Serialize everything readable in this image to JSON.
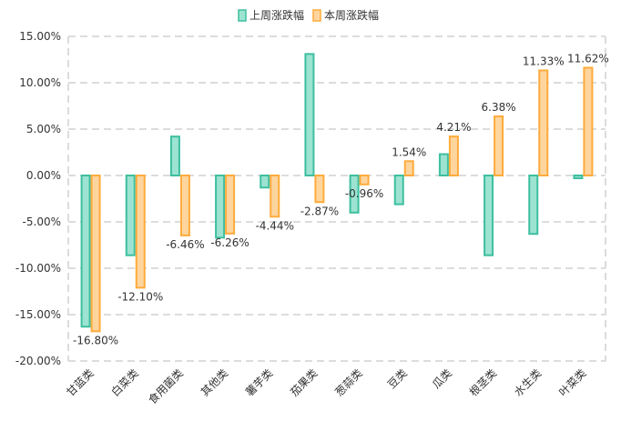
{
  "chart_data": {
    "type": "bar",
    "title": "",
    "xlabel": "",
    "ylabel": "",
    "ylim": [
      -20,
      15
    ],
    "yticks": [
      "15.00%",
      "10.00%",
      "5.00%",
      "0.00%",
      "-5.00%",
      "-10.00%",
      "-15.00%",
      "-20.00%"
    ],
    "ytick_values": [
      15,
      10,
      5,
      0,
      -5,
      -10,
      -15,
      -20
    ],
    "grid": true,
    "legend_position": "top-center",
    "categories": [
      "甘蓝类",
      "白菜类",
      "食用菌类",
      "其他类",
      "薯芋类",
      "茄果类",
      "葱蒜类",
      "豆类",
      "瓜类",
      "根茎类",
      "水生类",
      "叶菜类"
    ],
    "series": [
      {
        "name": "上周涨跌幅",
        "color": "#3dbf9f",
        "fill": "#9de3d2",
        "values": [
          -16.3,
          -8.6,
          4.2,
          -6.7,
          -1.3,
          13.1,
          -4.0,
          -3.1,
          2.3,
          -8.6,
          -6.3,
          -0.3
        ],
        "labels": null
      },
      {
        "name": "本周涨跌幅",
        "color": "#ffab3c",
        "fill": "#ffd59e",
        "values": [
          -16.8,
          -12.1,
          -6.46,
          -6.26,
          -4.44,
          -2.87,
          -0.96,
          1.54,
          4.21,
          6.38,
          11.33,
          11.62
        ],
        "labels": [
          "-16.80%",
          "-12.10%",
          "-6.46%",
          "-6.26%",
          "-4.44%",
          "-2.87%",
          "-0.96%",
          "1.54%",
          "4.21%",
          "6.38%",
          "11.33%",
          "11.62%"
        ]
      }
    ]
  }
}
